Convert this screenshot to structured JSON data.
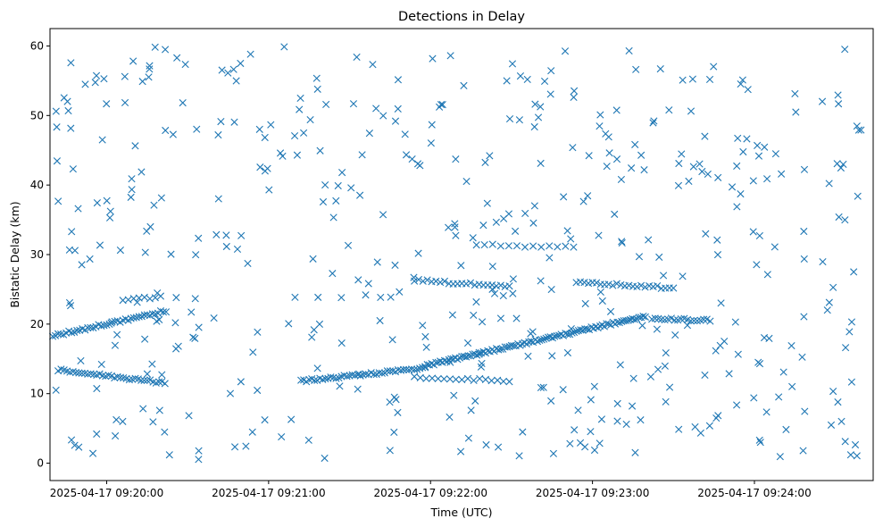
{
  "chart_data": {
    "type": "scatter",
    "title": "Detections in Delay",
    "xlabel": "Time (UTC)",
    "ylabel": "Bistatic Delay (km)",
    "marker": "x",
    "color": "#1f77b4",
    "grid": false,
    "legend": "none",
    "xlim": [
      "2025-04-17 09:19:39",
      "2025-04-17 09:24:44"
    ],
    "ylim": [
      -2.5,
      62.5
    ],
    "xticks": [
      {
        "value": "2025-04-17 09:20:00",
        "label": "2025-04-17 09:20:00"
      },
      {
        "value": "2025-04-17 09:21:00",
        "label": "2025-04-17 09:21:00"
      },
      {
        "value": "2025-04-17 09:22:00",
        "label": "2025-04-17 09:22:00"
      },
      {
        "value": "2025-04-17 09:23:00",
        "label": "2025-04-17 09:23:00"
      },
      {
        "value": "2025-04-17 09:24:00",
        "label": "2025-04-17 09:24:00"
      }
    ],
    "yticks": [
      0,
      10,
      20,
      30,
      40,
      50,
      60
    ],
    "tracks": [
      {
        "t_start": "2025-04-17 09:19:40",
        "t_end": "2025-04-17 09:20:22",
        "y_start": 18.3,
        "y_end": 21.9,
        "step_s": 1.0
      },
      {
        "t_start": "2025-04-17 09:19:42",
        "t_end": "2025-04-17 09:20:22",
        "y_start": 13.4,
        "y_end": 11.5,
        "step_s": 1.1
      },
      {
        "t_start": "2025-04-17 09:21:12",
        "t_end": "2025-04-17 09:21:58",
        "y_start": 11.8,
        "y_end": 13.7,
        "step_s": 1.0
      },
      {
        "t_start": "2025-04-17 09:21:58",
        "t_end": "2025-04-17 09:23:20",
        "y_start": 14.0,
        "y_end": 21.2,
        "step_s": 0.8
      },
      {
        "t_start": "2025-04-17 09:22:17",
        "t_end": "2025-04-17 09:22:54",
        "y_start": 31.4,
        "y_end": 31.0,
        "step_s": 3.0
      },
      {
        "t_start": "2025-04-17 09:22:54",
        "t_end": "2025-04-17 09:23:30",
        "y_start": 26.0,
        "y_end": 25.2,
        "step_s": 1.5
      },
      {
        "t_start": "2025-04-17 09:23:22",
        "t_end": "2025-04-17 09:23:44",
        "y_start": 20.8,
        "y_end": 20.5,
        "step_s": 1.2
      },
      {
        "t_start": "2025-04-17 09:21:54",
        "t_end": "2025-04-17 09:22:30",
        "y_start": 26.3,
        "y_end": 25.4,
        "step_s": 1.6
      },
      {
        "t_start": "2025-04-17 09:21:54",
        "t_end": "2025-04-17 09:22:30",
        "y_start": 12.4,
        "y_end": 11.8,
        "step_s": 2.2
      },
      {
        "t_start": "2025-04-17 09:20:06",
        "t_end": "2025-04-17 09:20:20",
        "y_start": 23.5,
        "y_end": 23.9,
        "step_s": 2.0
      }
    ],
    "clutter": {
      "count": 470,
      "seed": 20250417,
      "t_start": "2025-04-17 09:19:40",
      "t_end": "2025-04-17 09:24:40",
      "y_min": 0.5,
      "y_max": 60.0
    }
  }
}
